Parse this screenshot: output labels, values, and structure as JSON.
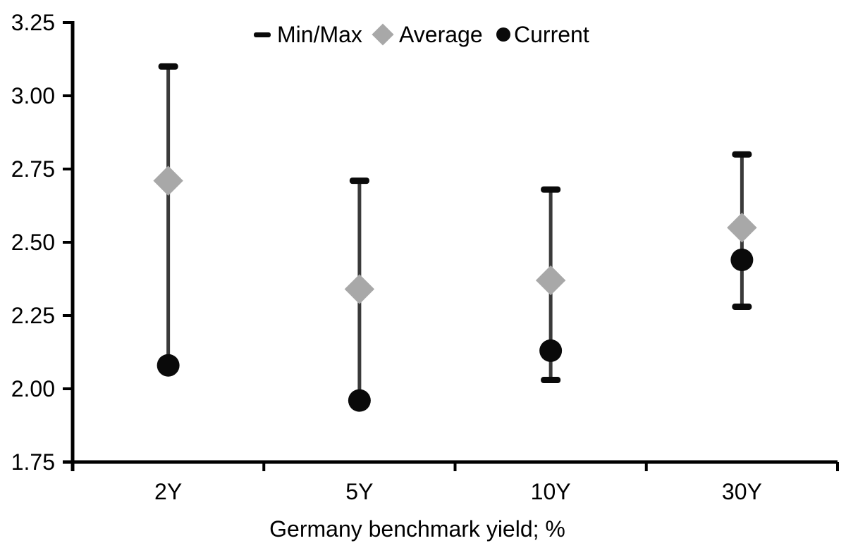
{
  "legend": {
    "items": [
      {
        "label": "Min/Max",
        "marker": "dash-icon"
      },
      {
        "label": "Average",
        "marker": "diamond-icon"
      },
      {
        "label": "Current",
        "marker": "circle-icon"
      }
    ]
  },
  "chart_data": {
    "type": "scatter",
    "subtype": "min-max-range-with-average-and-current-markers",
    "title": "",
    "xlabel": "Germany benchmark yield; %",
    "ylabel": "",
    "categories": [
      "2Y",
      "5Y",
      "10Y",
      "30Y"
    ],
    "series": [
      {
        "name": "Min/Max",
        "role": "range",
        "max": [
          3.1,
          2.71,
          2.68,
          2.8
        ],
        "min": [
          2.08,
          1.96,
          2.03,
          2.28
        ],
        "min_cap_visible": [
          false,
          false,
          true,
          true
        ]
      },
      {
        "name": "Average",
        "role": "marker-diamond",
        "values": [
          2.71,
          2.34,
          2.37,
          2.55
        ]
      },
      {
        "name": "Current",
        "role": "marker-circle",
        "values": [
          2.08,
          1.96,
          2.13,
          2.44
        ]
      }
    ],
    "ylim": [
      1.75,
      3.25
    ],
    "yticks": [
      "3.25",
      "3.00",
      "2.75",
      "2.50",
      "2.25",
      "2.00",
      "1.75"
    ],
    "grid": false,
    "legend_position": "top-center"
  },
  "colors": {
    "axis": "#000000",
    "text": "#000000",
    "whisker": "#3a3a3a",
    "minmax_cap": "#0a0a0a",
    "average": "#a8a8a8",
    "current": "#0a0a0a"
  }
}
